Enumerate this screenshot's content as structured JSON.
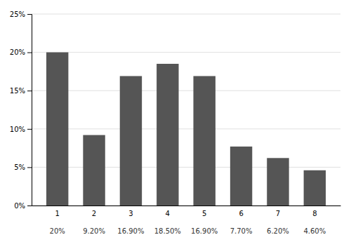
{
  "chart_data": {
    "type": "bar",
    "categories": [
      "1",
      "2",
      "3",
      "4",
      "5",
      "6",
      "7",
      "8"
    ],
    "values": [
      20.0,
      9.2,
      16.9,
      18.5,
      16.9,
      7.7,
      6.2,
      4.6
    ],
    "value_labels": [
      "20%",
      "9.20%",
      "16.90%",
      "18.50%",
      "16.90%",
      "7.70%",
      "6.20%",
      "4.60%"
    ],
    "data_labels": true,
    "color": "#555555",
    "ylim": [
      0,
      25
    ],
    "yticks": [
      {
        "value": 0,
        "label": "0%"
      },
      {
        "value": 5,
        "label": "5%"
      },
      {
        "value": 10,
        "label": "10%"
      },
      {
        "value": 15,
        "label": "15%"
      },
      {
        "value": 20,
        "label": "20%"
      },
      {
        "value": 25,
        "label": "25%"
      }
    ],
    "grid": true
  }
}
